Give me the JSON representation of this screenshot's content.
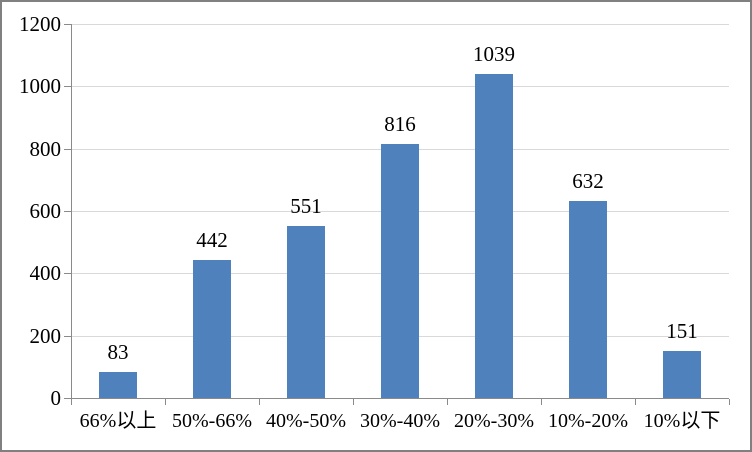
{
  "chart_data": {
    "type": "bar",
    "title": "",
    "xlabel": "",
    "ylabel": "",
    "categories": [
      "66%以上",
      "50%-66%",
      "40%-50%",
      "30%-40%",
      "20%-30%",
      "10%-20%",
      "10%以下"
    ],
    "values": [
      83,
      442,
      551,
      816,
      1039,
      632,
      151
    ],
    "data_labels": [
      "83",
      "442",
      "551",
      "816",
      "1039",
      "632",
      "151"
    ],
    "ylim": [
      0,
      1200
    ],
    "ytick_step": 200,
    "ytick_labels": [
      "0",
      "200",
      "400",
      "600",
      "800",
      "1000",
      "1200"
    ],
    "grid": true,
    "legend": false,
    "colors": {
      "bar": "#4F81BD",
      "gridline": "#D9D9D9",
      "axis": "#8A8A8A",
      "frame_border": "#808080",
      "text": "#000000",
      "background": "#FFFFFF"
    }
  }
}
